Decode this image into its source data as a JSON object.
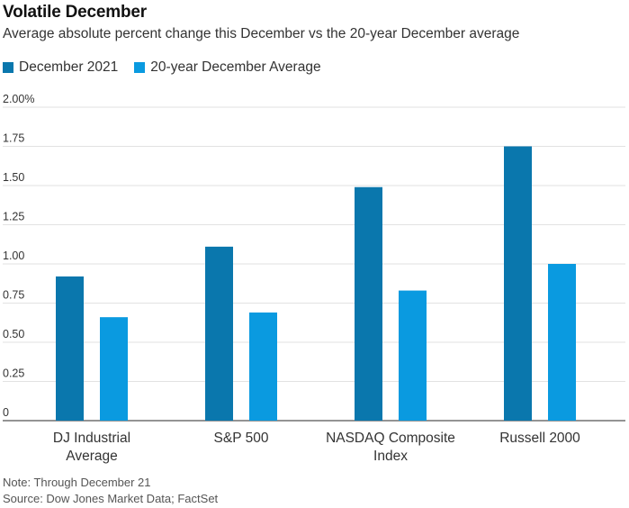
{
  "title": "Volatile December",
  "subtitle": "Average absolute percent change this December vs the 20-year December average",
  "note": "Note: Through December 21",
  "source": "Source: Dow Jones Market Data; FactSet",
  "colors": {
    "december_2021": "#0a77ad",
    "avg_20_year": "#0a9ae0",
    "grid": "#e2e2e2",
    "axis": "#555555",
    "text": "#333333"
  },
  "chart_data": {
    "type": "bar",
    "title": "Volatile December",
    "subtitle": "Average absolute percent change this December vs the 20-year December average",
    "categories": [
      "DJ Industrial\nAverage",
      "S&P 500",
      "NASDAQ Composite\nIndex",
      "Russell 2000"
    ],
    "series": [
      {
        "name": "December 2021",
        "values": [
          0.92,
          1.11,
          1.49,
          1.75
        ]
      },
      {
        "name": "20-year December Average",
        "values": [
          0.66,
          0.69,
          0.83,
          1.0
        ]
      }
    ],
    "yticks": [
      "0",
      "0.25",
      "0.50",
      "0.75",
      "1.00",
      "1.25",
      "1.50",
      "1.75",
      "2.00%"
    ],
    "ylim": [
      0,
      2.0
    ],
    "grid": true,
    "legend": "top-left"
  }
}
